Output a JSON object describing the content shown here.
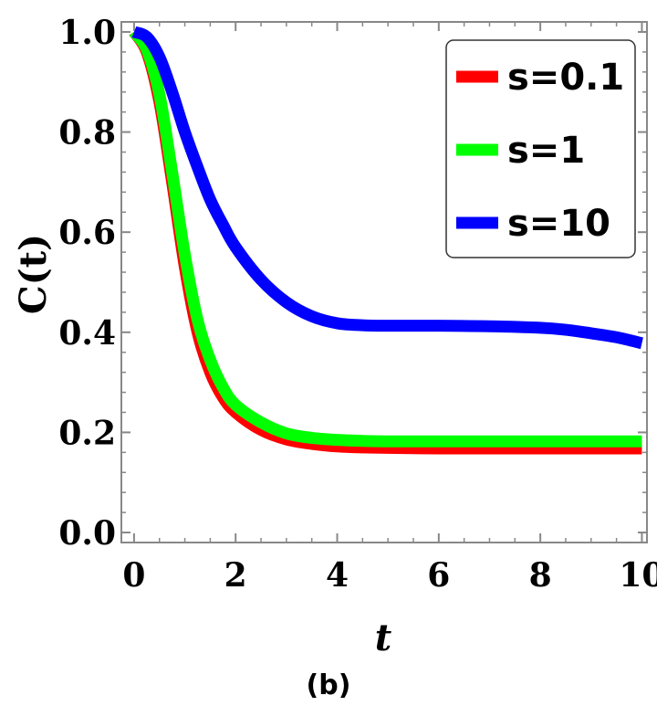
{
  "chart_data": {
    "type": "line",
    "title": "",
    "caption": "(b)",
    "xlabel": "t",
    "ylabel": "C(t)",
    "xlim": [
      -0.25,
      10.1
    ],
    "ylim": [
      -0.02,
      1.02
    ],
    "xticks": [
      0,
      2,
      4,
      6,
      8,
      10
    ],
    "yticks": [
      0.0,
      0.2,
      0.4,
      0.6,
      0.8,
      1.0
    ],
    "xtick_labels": [
      "0",
      "2",
      "4",
      "6",
      "8",
      "10"
    ],
    "ytick_labels": [
      "0.0",
      "0.2",
      "0.4",
      "0.6",
      "0.8",
      "1.0"
    ],
    "grid": false,
    "legend_position": "top-right",
    "series": [
      {
        "name": "s=0.1",
        "color": "#ff0000",
        "x": [
          0,
          0.25,
          0.5,
          0.75,
          1.0,
          1.25,
          1.5,
          1.75,
          2.0,
          2.5,
          3.0,
          3.5,
          4.0,
          4.5,
          5.0,
          6.0,
          7.0,
          8.0,
          9.0,
          10.0
        ],
        "y": [
          1.0,
          0.96,
          0.86,
          0.7,
          0.53,
          0.4,
          0.32,
          0.27,
          0.24,
          0.205,
          0.186,
          0.177,
          0.172,
          0.17,
          0.169,
          0.168,
          0.168,
          0.168,
          0.168,
          0.168
        ]
      },
      {
        "name": "s=1",
        "color": "#00ff00",
        "x": [
          0,
          0.25,
          0.5,
          0.75,
          1.0,
          1.25,
          1.5,
          1.75,
          2.0,
          2.5,
          3.0,
          3.5,
          4.0,
          4.5,
          5.0,
          6.0,
          7.0,
          8.0,
          9.0,
          10.0
        ],
        "y": [
          1.0,
          0.965,
          0.875,
          0.72,
          0.555,
          0.425,
          0.345,
          0.29,
          0.255,
          0.22,
          0.198,
          0.189,
          0.185,
          0.183,
          0.182,
          0.182,
          0.182,
          0.182,
          0.182,
          0.182
        ]
      },
      {
        "name": "s=10",
        "color": "#0000ff",
        "x": [
          0,
          0.25,
          0.5,
          0.75,
          1.0,
          1.25,
          1.5,
          1.75,
          2.0,
          2.5,
          3.0,
          3.5,
          4.0,
          4.5,
          5.0,
          6.0,
          7.0,
          8.0,
          8.5,
          9.0,
          9.5,
          10.0
        ],
        "y": [
          1.0,
          0.99,
          0.95,
          0.88,
          0.8,
          0.73,
          0.665,
          0.615,
          0.57,
          0.505,
          0.46,
          0.432,
          0.418,
          0.414,
          0.413,
          0.413,
          0.412,
          0.409,
          0.405,
          0.398,
          0.39,
          0.378
        ]
      }
    ]
  }
}
